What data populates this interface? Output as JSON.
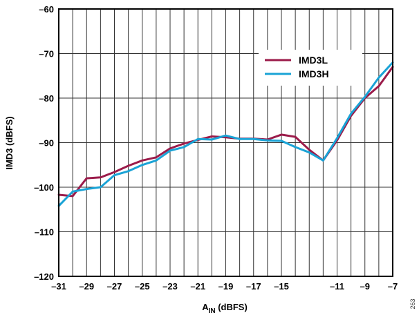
{
  "figure_id": "263",
  "chart_data": {
    "type": "line",
    "xlabel_main": "A",
    "xlabel_sub": "IN",
    "xlabel_suffix": " (dBFS)",
    "ylabel": "IMD3 (dBFS)",
    "xlim": [
      -31,
      -7
    ],
    "ylim": [
      -120,
      -60
    ],
    "x_ticks": [
      -31,
      -29,
      -27,
      -25,
      -23,
      -21,
      -19,
      -17,
      -15,
      -11,
      -9,
      -7
    ],
    "x_tick_labels": [
      "–31",
      "–29",
      "–27",
      "–25",
      "–23",
      "–21",
      "–19",
      "–17",
      "–15",
      "–11",
      "–9",
      "–7"
    ],
    "x_grid": [
      -31,
      -30,
      -29,
      -28,
      -27,
      -26,
      -25,
      -24,
      -23,
      -22,
      -21,
      -20,
      -19,
      -18,
      -17,
      -16,
      -15,
      -14,
      -13,
      -12,
      -11,
      -10,
      -9,
      -8,
      -7
    ],
    "y_ticks": [
      -120,
      -110,
      -100,
      -90,
      -80,
      -70,
      -60
    ],
    "y_tick_labels": [
      "–120",
      "–110",
      "–100",
      "–90",
      "–80",
      "–70",
      "–60"
    ],
    "grid": true,
    "legend_position": "top-right",
    "series": [
      {
        "name": "IMD3L",
        "color": "#9b1b4a",
        "x": [
          -31,
          -30,
          -29,
          -28,
          -27,
          -26,
          -25,
          -24,
          -23,
          -22,
          -21,
          -20,
          -19,
          -18,
          -17,
          -16,
          -15,
          -14,
          -13,
          -12,
          -11,
          -10,
          -9,
          -8,
          -7
        ],
        "y": [
          -101.7,
          -102.0,
          -98.0,
          -97.8,
          -96.6,
          -95.2,
          -94.0,
          -93.3,
          -91.3,
          -90.2,
          -89.4,
          -88.6,
          -88.8,
          -89.1,
          -89.1,
          -89.3,
          -88.2,
          -88.7,
          -91.6,
          -94.0,
          -89.5,
          -84.0,
          -80.0,
          -77.3,
          -73.0
        ]
      },
      {
        "name": "IMD3H",
        "color": "#1aa3d6",
        "x": [
          -31,
          -30,
          -29,
          -28,
          -27,
          -26,
          -25,
          -24,
          -23,
          -22,
          -21,
          -20,
          -19,
          -18,
          -17,
          -16,
          -15,
          -14,
          -13,
          -12,
          -11,
          -10,
          -9,
          -8,
          -7
        ],
        "y": [
          -104.2,
          -101.0,
          -100.4,
          -100.0,
          -97.3,
          -96.4,
          -95.0,
          -94.0,
          -91.8,
          -91.0,
          -89.2,
          -89.3,
          -88.4,
          -89.2,
          -89.2,
          -89.5,
          -89.6,
          -91.0,
          -92.2,
          -94.0,
          -89.0,
          -83.5,
          -79.7,
          -75.4,
          -72.0
        ]
      }
    ]
  }
}
